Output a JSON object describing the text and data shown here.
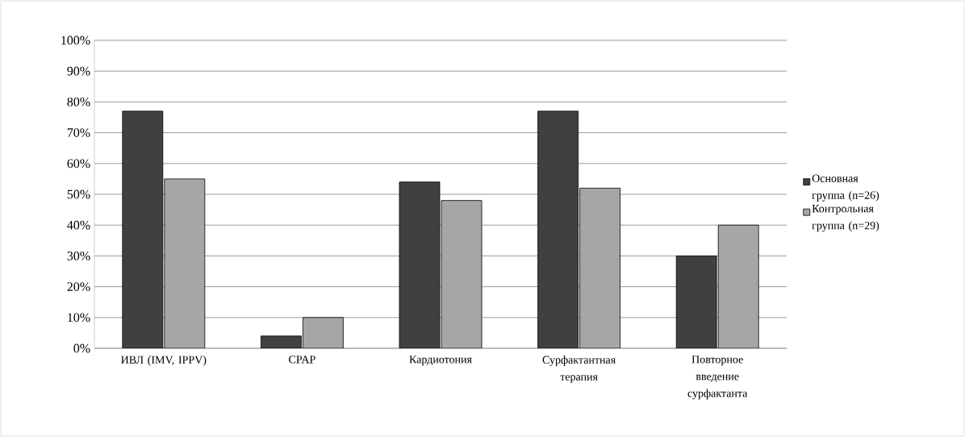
{
  "chart_data": {
    "type": "bar",
    "categories": [
      "ИВЛ (IMV, IPPV)",
      "CPAP",
      "Кардиотония",
      "Сурфактантная терапия",
      "Повторное введение сурфактанта"
    ],
    "series": [
      {
        "name": "Основная группа (n=26)",
        "color": "#404040",
        "values": [
          77,
          4,
          54,
          77,
          30
        ]
      },
      {
        "name": "Контрольная группа (n=29)",
        "color": "#a6a6a6",
        "values": [
          55,
          10,
          48,
          52,
          40
        ]
      }
    ],
    "ylim": [
      0,
      100
    ],
    "yticks": [
      {
        "value": 0,
        "label": "0%"
      },
      {
        "value": 10,
        "label": "10%"
      },
      {
        "value": 20,
        "label": "20%"
      },
      {
        "value": 30,
        "label": "30%"
      },
      {
        "value": 40,
        "label": "40%"
      },
      {
        "value": 50,
        "label": "50%"
      },
      {
        "value": 60,
        "label": "60%"
      },
      {
        "value": 70,
        "label": "70%"
      },
      {
        "value": 80,
        "label": "80%"
      },
      {
        "value": 90,
        "label": "90%"
      },
      {
        "value": 100,
        "label": "100%"
      }
    ],
    "grid": "y",
    "legend": "right"
  }
}
